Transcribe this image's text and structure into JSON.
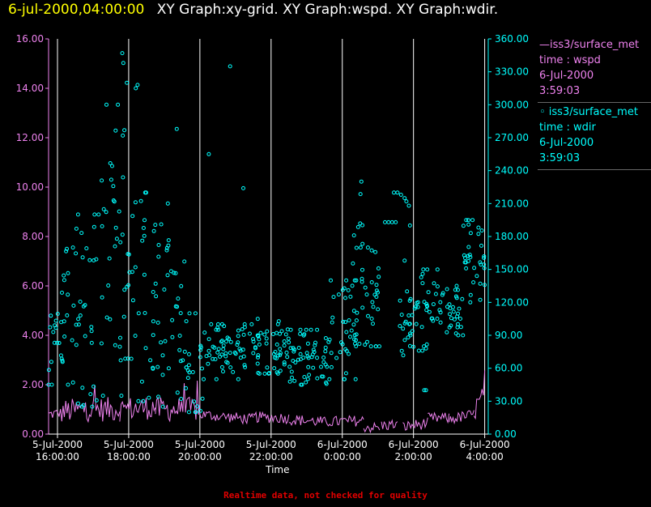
{
  "header": {
    "time": "6-jul-2000,04:00:00",
    "graphs": "XY Graph:xy-grid.  XY Graph:wspd.  XY Graph:wdir."
  },
  "legend": {
    "wspd": {
      "line1": "—iss3/surface_met",
      "line2": "time : wspd",
      "line3": "6-Jul-2000",
      "line4": "3:59:03"
    },
    "wdir": {
      "line1": "◦ iss3/surface_met",
      "line2": "time : wdir",
      "line3": "6-Jul-2000",
      "line4": "3:59:03"
    }
  },
  "footer": {
    "note": "Realtime data, not checked for quality"
  },
  "colors": {
    "wspd": "#ee82ee",
    "wdir": "#00ffff",
    "grid": "#ffffff",
    "title_time": "#ffff00",
    "note": "#e00000"
  },
  "chart_data": {
    "type": "scatter",
    "xlabel": "Time",
    "x_range_hours": [
      15.75,
      28.1
    ],
    "x_ticks": [
      {
        "hour": 16,
        "date": "5-Jul-2000",
        "time": "16:00:00"
      },
      {
        "hour": 18,
        "date": "5-Jul-2000",
        "time": "18:00:00"
      },
      {
        "hour": 20,
        "date": "5-Jul-2000",
        "time": "20:00:00"
      },
      {
        "hour": 22,
        "date": "5-Jul-2000",
        "time": "22:00:00"
      },
      {
        "hour": 24,
        "date": "6-Jul-2000",
        "time": "0:00:00"
      },
      {
        "hour": 26,
        "date": "6-Jul-2000",
        "time": "2:00:00"
      },
      {
        "hour": 28,
        "date": "6-Jul-2000",
        "time": "4:00:00"
      }
    ],
    "left_axis": {
      "series": "wspd",
      "range": [
        0,
        16
      ],
      "ticks": [
        "0.00",
        "2.00",
        "4.00",
        "6.00",
        "8.00",
        "10.00",
        "12.00",
        "14.00",
        "16.00"
      ]
    },
    "right_axis": {
      "series": "wdir",
      "range": [
        0,
        360
      ],
      "ticks": [
        "0.00",
        "30.00",
        "60.00",
        "90.00",
        "120.00",
        "150.00",
        "180.00",
        "210.00",
        "240.00",
        "270.00",
        "300.00",
        "330.00",
        "360.00"
      ]
    },
    "grid": "vertical",
    "series": [
      {
        "key": "wspd",
        "style": "line",
        "axis": "left",
        "segments": [
          [
            15.75,
            16.75,
            0.75,
            0.9
          ],
          [
            16.75,
            17.75,
            0.9,
            0.9
          ],
          [
            17.75,
            18.75,
            0.9,
            1.0
          ],
          [
            18.75,
            20.0,
            0.9,
            0.9
          ],
          [
            20.0,
            21.5,
            0.75,
            0.55
          ],
          [
            21.5,
            22.5,
            0.65,
            0.6
          ],
          [
            22.5,
            23.5,
            0.55,
            0.45
          ],
          [
            23.5,
            24.6,
            0.45,
            0.5
          ],
          [
            24.6,
            25.05,
            0.25,
            0.2
          ],
          [
            25.1,
            25.55,
            0.3,
            0.35
          ],
          [
            25.7,
            26.4,
            0.25,
            0.4
          ],
          [
            26.4,
            27.0,
            0.6,
            0.6
          ],
          [
            27.0,
            27.7,
            0.55,
            0.75
          ],
          [
            27.7,
            28.0,
            0.9,
            1.4
          ]
        ]
      },
      {
        "key": "wdir",
        "style": "markers",
        "axis": "right",
        "clusters": [
          [
            15.75,
            16.5,
            45,
            170,
            34
          ],
          [
            16.5,
            17.2,
            25,
            200,
            32
          ],
          [
            17.2,
            17.9,
            35,
            300,
            36
          ],
          [
            17.9,
            18.9,
            30,
            220,
            44
          ],
          [
            18.9,
            19.6,
            25,
            210,
            32
          ],
          [
            19.6,
            20.1,
            20,
            110,
            24
          ],
          [
            20.1,
            21.5,
            50,
            100,
            62
          ],
          [
            21.5,
            22.5,
            55,
            105,
            52
          ],
          [
            22.5,
            23.6,
            45,
            95,
            56
          ],
          [
            23.6,
            24.5,
            50,
            140,
            46
          ],
          [
            24.3,
            24.6,
            140,
            230,
            10
          ],
          [
            24.5,
            25.1,
            80,
            170,
            30
          ],
          [
            25.6,
            26.0,
            70,
            130,
            18
          ],
          [
            25.9,
            26.2,
            90,
            120,
            10
          ],
          [
            26.2,
            26.7,
            80,
            150,
            24
          ],
          [
            26.7,
            27.4,
            90,
            135,
            34
          ],
          [
            27.4,
            28.0,
            120,
            195,
            34
          ]
        ],
        "extra_points": [
          [
            17.85,
            338
          ],
          [
            17.82,
            347
          ],
          [
            17.95,
            320
          ],
          [
            18.25,
            318
          ],
          [
            18.2,
            315
          ],
          [
            20.85,
            335
          ],
          [
            21.22,
            224
          ],
          [
            19.35,
            278
          ],
          [
            20.25,
            255
          ],
          [
            26.35,
            40
          ],
          [
            26.3,
            40
          ],
          [
            25.75,
            158
          ],
          [
            25.9,
            190
          ],
          [
            25.2,
            193
          ],
          [
            25.3,
            193
          ],
          [
            25.4,
            193
          ],
          [
            25.5,
            193
          ],
          [
            25.45,
            220
          ],
          [
            25.55,
            220
          ],
          [
            25.65,
            218
          ],
          [
            25.75,
            215
          ],
          [
            25.8,
            212
          ],
          [
            25.87,
            208
          ],
          [
            26.15,
            76
          ],
          [
            26.25,
            76
          ],
          [
            26.35,
            78
          ]
        ]
      }
    ]
  }
}
